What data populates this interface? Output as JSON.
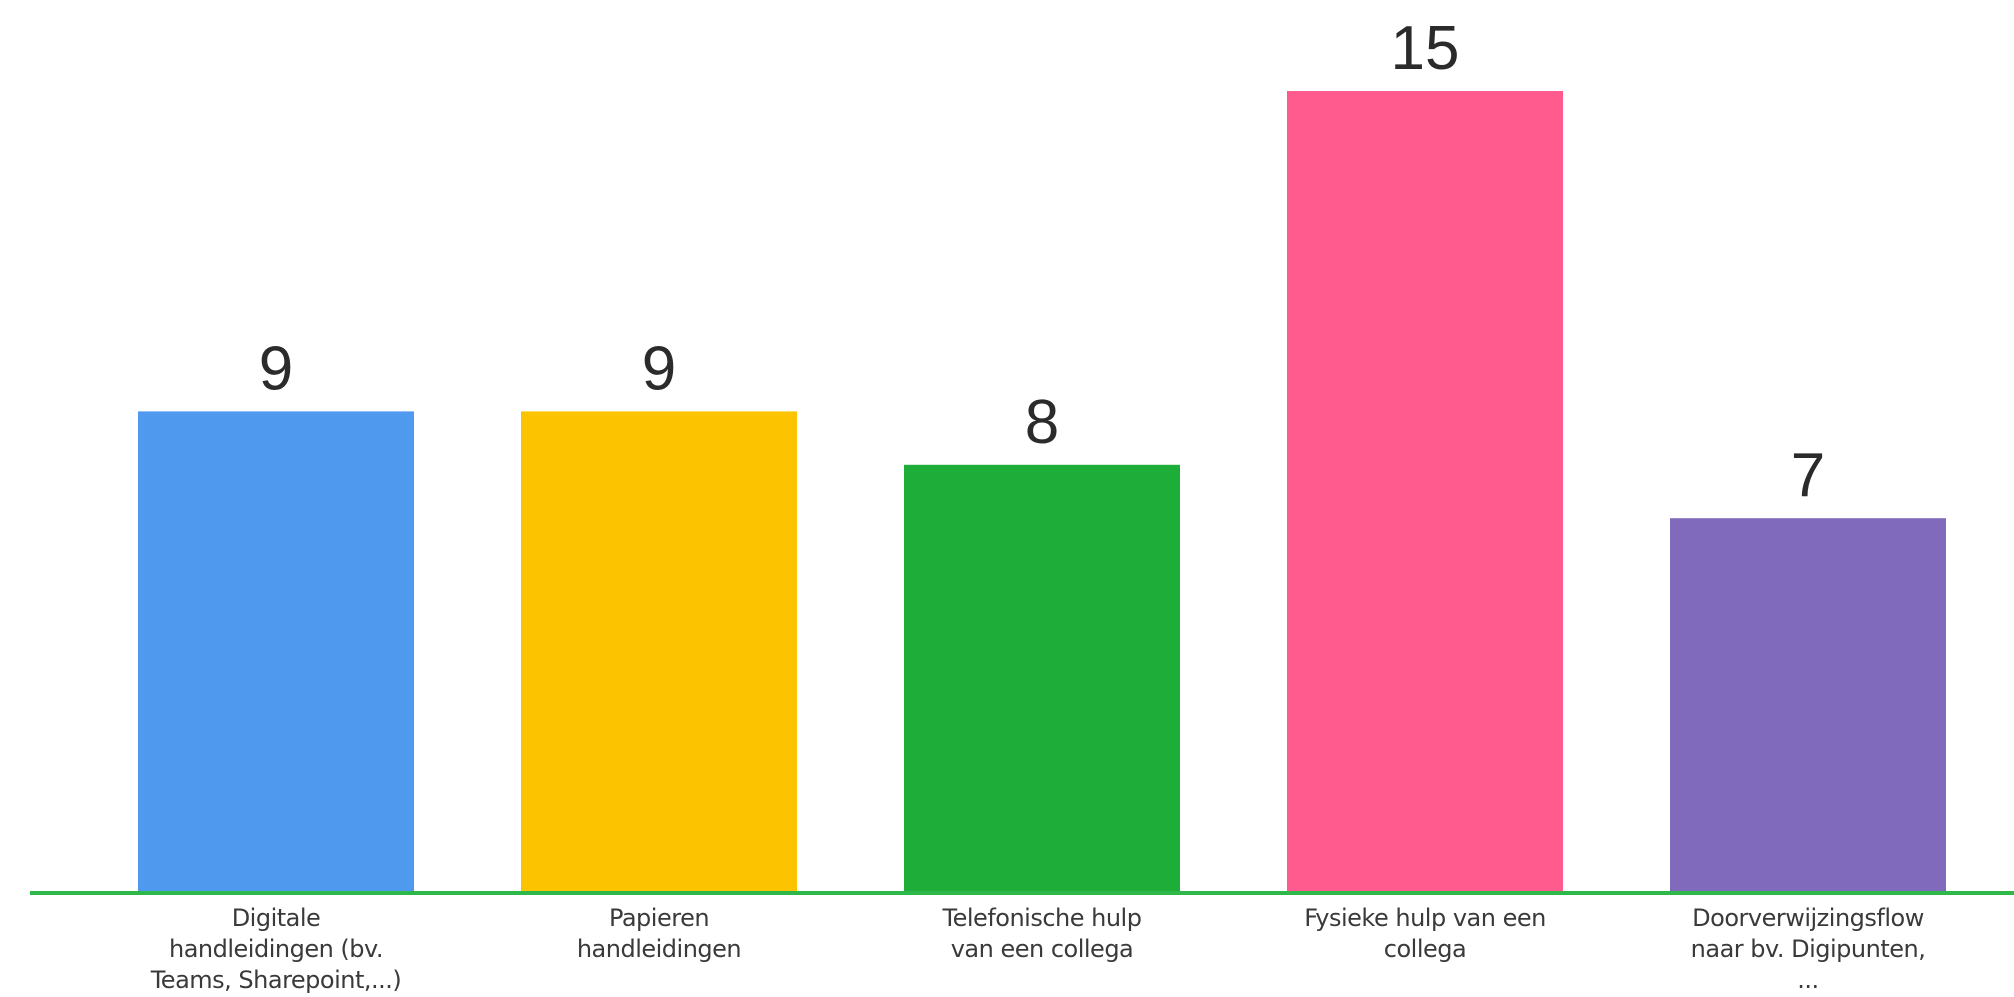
{
  "chart_data": {
    "type": "bar",
    "categories": [
      [
        "Digitale",
        "handleidingen (bv.",
        "Teams, Sharepoint,...)"
      ],
      [
        "Papieren",
        "handleidingen"
      ],
      [
        "Telefonische hulp",
        "van een collega"
      ],
      [
        "Fysieke hulp van een",
        "collega"
      ],
      [
        "Doorverwijzingsflow",
        "naar bv. Digipunten,",
        "..."
      ]
    ],
    "values": [
      9,
      9,
      8,
      15,
      7
    ],
    "colors": [
      "#4f9aee",
      "#fbc300",
      "#1fad3a",
      "#ff5b8f",
      "#7f6abc"
    ],
    "axis_color": "#2fb84a",
    "title": "",
    "xlabel": "",
    "ylabel": "",
    "grid": false,
    "legend": false
  }
}
